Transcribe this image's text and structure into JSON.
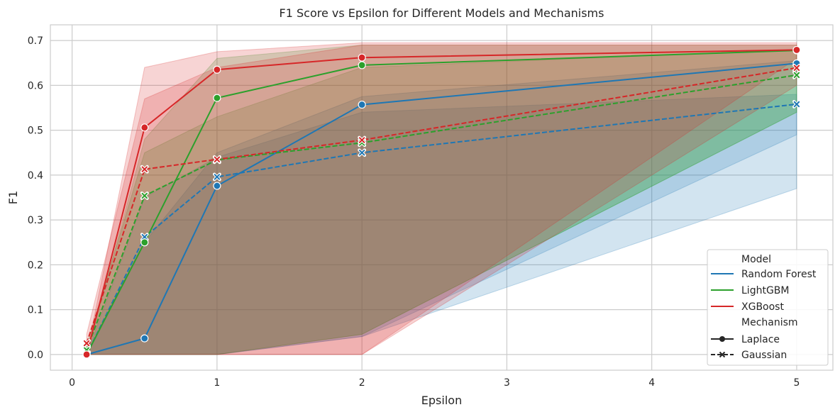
{
  "chart_data": {
    "type": "line",
    "title": "F1 Score vs Epsilon for Different Models and Mechanisms",
    "xlabel": "Epsilon",
    "ylabel": "F1",
    "xlim": [
      -0.15,
      5.25
    ],
    "ylim": [
      -0.035,
      0.735
    ],
    "xticks": [
      0,
      1,
      2,
      3,
      4,
      5
    ],
    "yticks": [
      0.0,
      0.1,
      0.2,
      0.3,
      0.4,
      0.5,
      0.6,
      0.7
    ],
    "grid": true,
    "x": [
      0.1,
      0.5,
      1,
      2,
      5
    ],
    "legend": {
      "placement": "lower-right",
      "model_title": "Model",
      "mechanism_title": "Mechanism",
      "models": [
        {
          "name": "Random Forest",
          "color": "#1f77b4"
        },
        {
          "name": "LightGBM",
          "color": "#2ca02c"
        },
        {
          "name": "XGBoost",
          "color": "#d62728"
        }
      ],
      "mechanisms": [
        {
          "name": "Laplace",
          "line": "solid",
          "marker": "circle"
        },
        {
          "name": "Gaussian",
          "line": "dashed",
          "marker": "x"
        }
      ]
    },
    "series": [
      {
        "name": "Random Forest",
        "mechanism": "Laplace",
        "color": "#1f77b4",
        "values": [
          0.0,
          0.036,
          0.376,
          0.557,
          0.649
        ],
        "lower": [
          0.0,
          0.0,
          0.0,
          0.04,
          0.37
        ],
        "upper": [
          0.0,
          0.25,
          0.45,
          0.575,
          0.655
        ]
      },
      {
        "name": "Random Forest",
        "mechanism": "Gaussian",
        "color": "#1f77b4",
        "values": [
          0.0,
          0.262,
          0.396,
          0.45,
          0.558
        ],
        "lower": [
          0.0,
          0.0,
          0.0,
          0.04,
          0.49
        ],
        "upper": [
          0.0,
          0.35,
          0.44,
          0.54,
          0.58
        ]
      },
      {
        "name": "LightGBM",
        "mechanism": "Laplace",
        "color": "#2ca02c",
        "values": [
          0.0,
          0.25,
          0.572,
          0.645,
          0.678
        ],
        "lower": [
          0.0,
          0.0,
          0.0,
          0.045,
          0.54
        ],
        "upper": [
          0.0,
          0.48,
          0.66,
          0.69,
          0.69
        ]
      },
      {
        "name": "LightGBM",
        "mechanism": "Gaussian",
        "color": "#2ca02c",
        "values": [
          0.01,
          0.354,
          0.434,
          0.472,
          0.623
        ],
        "lower": [
          0.0,
          0.0,
          0.0,
          0.045,
          0.54
        ],
        "upper": [
          0.02,
          0.45,
          0.53,
          0.64,
          0.68
        ]
      },
      {
        "name": "XGBoost",
        "mechanism": "Laplace",
        "color": "#d62728",
        "values": [
          0.0,
          0.506,
          0.635,
          0.662,
          0.679
        ],
        "lower": [
          0.0,
          0.0,
          0.0,
          0.0,
          0.66
        ],
        "upper": [
          0.0,
          0.64,
          0.675,
          0.695,
          0.695
        ]
      },
      {
        "name": "XGBoost",
        "mechanism": "Gaussian",
        "color": "#d62728",
        "values": [
          0.025,
          0.413,
          0.435,
          0.478,
          0.639
        ],
        "lower": [
          0.0,
          0.0,
          0.0,
          0.0,
          0.6
        ],
        "upper": [
          0.045,
          0.57,
          0.64,
          0.69,
          0.69
        ]
      }
    ]
  }
}
